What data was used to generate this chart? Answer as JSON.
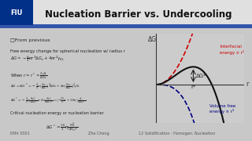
{
  "title": "Nucleation Barrier vs. Undercooling",
  "bg_color": "#e8e8e8",
  "plot_bg": "#d8d8d8",
  "axis_color": "#333333",
  "curve_interfacial_color": "#cc0000",
  "curve_total_color": "#111111",
  "curve_volume_color": "#000080",
  "label_interfacial": "Interfacial\nenergy ∝ r²",
  "label_volume": "Volume free\nenergy ∝ r³",
  "label_dG_star": "ΔG*",
  "label_r_star": "r*",
  "label_r": "r",
  "label_dG": "ΔG",
  "logo_text": "FIU",
  "slide_info": "From previous",
  "xlim": [
    0,
    1.0
  ],
  "ylim": [
    -0.6,
    0.8
  ],
  "r_star": 0.42,
  "dG_star": 0.28
}
